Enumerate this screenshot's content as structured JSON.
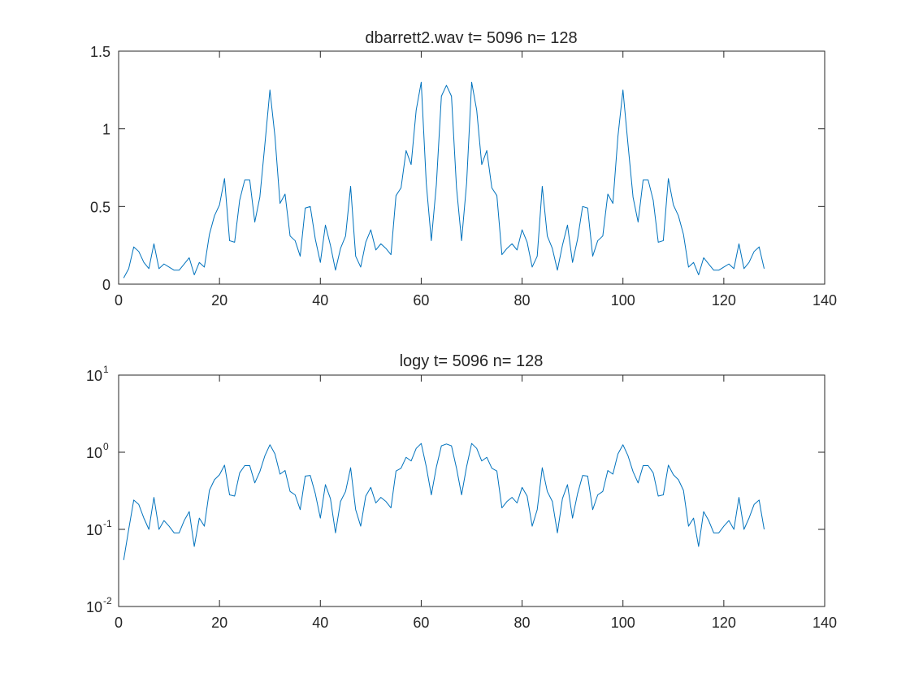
{
  "chart_data": [
    {
      "type": "line",
      "title": "dbarrett2.wav  t= 5096 n= 128",
      "xlabel": "",
      "ylabel": "",
      "xlim": [
        0,
        140
      ],
      "ylim": [
        0,
        1.5
      ],
      "yscale": "linear",
      "xticks": [
        0,
        20,
        40,
        60,
        80,
        100,
        120,
        140
      ],
      "yticks": [
        0,
        0.5,
        1,
        1.5
      ],
      "xtick_labels": [
        "0",
        "20",
        "40",
        "60",
        "80",
        "100",
        "120",
        "140"
      ],
      "ytick_labels": [
        "0",
        "0.5",
        "1",
        "1.5"
      ],
      "grid": false,
      "series": [
        {
          "color": "#0072BD",
          "x": [
            1,
            2,
            3,
            4,
            5,
            6,
            7,
            8,
            9,
            10,
            11,
            12,
            13,
            14,
            15,
            16,
            17,
            18,
            19,
            20,
            21,
            22,
            23,
            24,
            25,
            26,
            27,
            28,
            29,
            30,
            31,
            32,
            33,
            34,
            35,
            36,
            37,
            38,
            39,
            40,
            41,
            42,
            43,
            44,
            45,
            46,
            47,
            48,
            49,
            50,
            51,
            52,
            53,
            54,
            55,
            56,
            57,
            58,
            59,
            60,
            61,
            62,
            63,
            64,
            65,
            66,
            67,
            68,
            69,
            70,
            71,
            72,
            73,
            74,
            75,
            76,
            77,
            78,
            79,
            80,
            81,
            82,
            83,
            84,
            85,
            86,
            87,
            88,
            89,
            90,
            91,
            92,
            93,
            94,
            95,
            96,
            97,
            98,
            99,
            100,
            101,
            102,
            103,
            104,
            105,
            106,
            107,
            108,
            109,
            110,
            111,
            112,
            113,
            114,
            115,
            116,
            117,
            118,
            119,
            120,
            121,
            122,
            123,
            124,
            125,
            126,
            127,
            128
          ],
          "y": [
            0.04,
            0.1,
            0.24,
            0.21,
            0.14,
            0.1,
            0.26,
            0.1,
            0.13,
            0.11,
            0.09,
            0.09,
            0.13,
            0.17,
            0.06,
            0.14,
            0.11,
            0.32,
            0.44,
            0.51,
            0.68,
            0.28,
            0.27,
            0.54,
            0.67,
            0.67,
            0.4,
            0.56,
            0.9,
            1.25,
            0.95,
            0.52,
            0.58,
            0.31,
            0.28,
            0.18,
            0.49,
            0.5,
            0.29,
            0.14,
            0.38,
            0.25,
            0.09,
            0.23,
            0.31,
            0.63,
            0.18,
            0.11,
            0.27,
            0.35,
            0.22,
            0.26,
            0.23,
            0.19,
            0.57,
            0.62,
            0.86,
            0.77,
            1.12,
            1.3,
            0.65,
            0.28,
            0.64,
            1.21,
            1.28,
            1.21,
            0.62,
            0.28,
            0.65,
            1.3,
            1.12,
            0.77,
            0.86,
            0.62,
            0.57,
            0.19,
            0.23,
            0.26,
            0.22,
            0.35,
            0.27,
            0.11,
            0.18,
            0.63,
            0.31,
            0.23,
            0.09,
            0.25,
            0.38,
            0.14,
            0.29,
            0.5,
            0.49,
            0.18,
            0.28,
            0.31,
            0.58,
            0.52,
            0.95,
            1.25,
            0.9,
            0.56,
            0.4,
            0.67,
            0.67,
            0.54,
            0.27,
            0.28,
            0.68,
            0.51,
            0.44,
            0.32,
            0.11,
            0.14,
            0.06,
            0.17,
            0.13,
            0.09,
            0.09,
            0.11,
            0.13,
            0.1,
            0.26,
            0.1,
            0.14,
            0.21,
            0.24,
            0.1
          ]
        }
      ]
    },
    {
      "type": "line",
      "title": "logy t= 5096 n= 128",
      "xlabel": "",
      "ylabel": "",
      "xlim": [
        0,
        140
      ],
      "ylim": [
        0.01,
        10
      ],
      "yscale": "log",
      "xticks": [
        0,
        20,
        40,
        60,
        80,
        100,
        120,
        140
      ],
      "xtick_labels": [
        "0",
        "20",
        "40",
        "60",
        "80",
        "100",
        "120",
        "140"
      ],
      "yticks": [
        0.01,
        0.1,
        1,
        10
      ],
      "ytick_base": "10",
      "ytick_exponents": [
        "-2",
        "-1",
        "0",
        "1"
      ],
      "grid": false,
      "series": [
        {
          "color": "#0072BD",
          "x": [
            1,
            2,
            3,
            4,
            5,
            6,
            7,
            8,
            9,
            10,
            11,
            12,
            13,
            14,
            15,
            16,
            17,
            18,
            19,
            20,
            21,
            22,
            23,
            24,
            25,
            26,
            27,
            28,
            29,
            30,
            31,
            32,
            33,
            34,
            35,
            36,
            37,
            38,
            39,
            40,
            41,
            42,
            43,
            44,
            45,
            46,
            47,
            48,
            49,
            50,
            51,
            52,
            53,
            54,
            55,
            56,
            57,
            58,
            59,
            60,
            61,
            62,
            63,
            64,
            65,
            66,
            67,
            68,
            69,
            70,
            71,
            72,
            73,
            74,
            75,
            76,
            77,
            78,
            79,
            80,
            81,
            82,
            83,
            84,
            85,
            86,
            87,
            88,
            89,
            90,
            91,
            92,
            93,
            94,
            95,
            96,
            97,
            98,
            99,
            100,
            101,
            102,
            103,
            104,
            105,
            106,
            107,
            108,
            109,
            110,
            111,
            112,
            113,
            114,
            115,
            116,
            117,
            118,
            119,
            120,
            121,
            122,
            123,
            124,
            125,
            126,
            127,
            128
          ],
          "y": [
            0.04,
            0.1,
            0.24,
            0.21,
            0.14,
            0.1,
            0.26,
            0.1,
            0.13,
            0.11,
            0.09,
            0.09,
            0.13,
            0.17,
            0.06,
            0.14,
            0.11,
            0.32,
            0.44,
            0.51,
            0.68,
            0.28,
            0.27,
            0.54,
            0.67,
            0.67,
            0.4,
            0.56,
            0.9,
            1.25,
            0.95,
            0.52,
            0.58,
            0.31,
            0.28,
            0.18,
            0.49,
            0.5,
            0.29,
            0.14,
            0.38,
            0.25,
            0.09,
            0.23,
            0.31,
            0.63,
            0.18,
            0.11,
            0.27,
            0.35,
            0.22,
            0.26,
            0.23,
            0.19,
            0.57,
            0.62,
            0.86,
            0.77,
            1.12,
            1.3,
            0.65,
            0.28,
            0.64,
            1.21,
            1.28,
            1.21,
            0.62,
            0.28,
            0.65,
            1.3,
            1.12,
            0.77,
            0.86,
            0.62,
            0.57,
            0.19,
            0.23,
            0.26,
            0.22,
            0.35,
            0.27,
            0.11,
            0.18,
            0.63,
            0.31,
            0.23,
            0.09,
            0.25,
            0.38,
            0.14,
            0.29,
            0.5,
            0.49,
            0.18,
            0.28,
            0.31,
            0.58,
            0.52,
            0.95,
            1.25,
            0.9,
            0.56,
            0.4,
            0.67,
            0.67,
            0.54,
            0.27,
            0.28,
            0.68,
            0.51,
            0.44,
            0.32,
            0.11,
            0.14,
            0.06,
            0.17,
            0.13,
            0.09,
            0.09,
            0.11,
            0.13,
            0.1,
            0.26,
            0.1,
            0.14,
            0.21,
            0.24,
            0.1
          ]
        }
      ]
    }
  ]
}
